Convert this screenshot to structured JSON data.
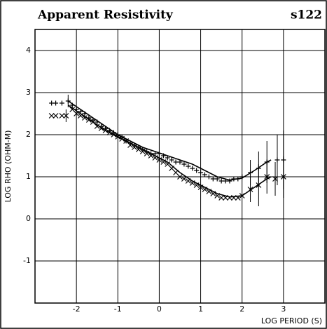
{
  "chart_data": {
    "type": "scatter-line",
    "title": "Apparent Resistivity",
    "subtitle": "s122",
    "x_label": "LOG PERIOD (S)",
    "y_label": "LOG RHO (OHM-M)",
    "xlim": [
      -3,
      4
    ],
    "ylim": [
      -2,
      4.5
    ],
    "xticks": [
      -2,
      -1,
      0,
      1,
      2,
      3
    ],
    "yticks": [
      -1,
      0,
      1,
      2,
      3,
      4
    ],
    "grid": true,
    "series": [
      {
        "marker": "+",
        "color": "#000000",
        "x": [
          -2.6,
          -2.5,
          -2.35,
          -2.2,
          -2.1,
          -2.0,
          -1.9,
          -1.8,
          -1.7,
          -1.6,
          -1.5,
          -1.4,
          -1.3,
          -1.2,
          -1.1,
          -1.0,
          -0.9,
          -0.8,
          -0.7,
          -0.6,
          -0.5,
          -0.4,
          -0.3,
          -0.2,
          -0.1,
          0,
          0.1,
          0.2,
          0.3,
          0.4,
          0.5,
          0.6,
          0.7,
          0.8,
          0.9,
          1.0,
          1.1,
          1.2,
          1.3,
          1.4,
          1.5,
          1.6,
          1.7,
          1.8,
          1.9,
          2.0,
          2.2,
          2.4,
          2.6,
          2.85,
          3.0
        ],
        "values": [
          2.75,
          2.75,
          2.75,
          2.8,
          2.7,
          2.6,
          2.55,
          2.5,
          2.4,
          2.35,
          2.3,
          2.2,
          2.15,
          2.1,
          2.05,
          2.0,
          1.95,
          1.85,
          1.8,
          1.75,
          1.7,
          1.65,
          1.6,
          1.55,
          1.55,
          1.55,
          1.5,
          1.45,
          1.4,
          1.35,
          1.35,
          1.3,
          1.25,
          1.2,
          1.15,
          1.1,
          1.05,
          1.0,
          0.95,
          0.95,
          0.9,
          0.9,
          0.9,
          0.95,
          0.95,
          1.0,
          1.1,
          1.2,
          1.35,
          1.4,
          1.4
        ],
        "errors": [
          null,
          null,
          null,
          0.15,
          null,
          null,
          null,
          null,
          null,
          null,
          null,
          null,
          null,
          null,
          null,
          null,
          null,
          null,
          null,
          null,
          null,
          null,
          null,
          null,
          null,
          null,
          null,
          null,
          null,
          null,
          null,
          null,
          null,
          null,
          null,
          null,
          null,
          null,
          null,
          null,
          null,
          null,
          null,
          null,
          null,
          null,
          0.3,
          0.4,
          0.5,
          0.6,
          0.7
        ]
      },
      {
        "marker": "x",
        "color": "#000000",
        "x": [
          -2.6,
          -2.5,
          -2.35,
          -2.25,
          -2.1,
          -2.0,
          -1.9,
          -1.8,
          -1.7,
          -1.6,
          -1.5,
          -1.4,
          -1.3,
          -1.2,
          -1.1,
          -1.0,
          -0.9,
          -0.8,
          -0.7,
          -0.6,
          -0.5,
          -0.4,
          -0.3,
          -0.2,
          -0.1,
          0,
          0.1,
          0.2,
          0.3,
          0.4,
          0.5,
          0.6,
          0.7,
          0.8,
          0.9,
          1.0,
          1.1,
          1.2,
          1.3,
          1.4,
          1.5,
          1.6,
          1.7,
          1.8,
          1.9,
          2.0,
          2.2,
          2.4,
          2.6,
          2.8,
          3.0
        ],
        "values": [
          2.45,
          2.45,
          2.45,
          2.45,
          2.6,
          2.5,
          2.45,
          2.4,
          2.35,
          2.3,
          2.2,
          2.15,
          2.1,
          2.05,
          2.0,
          1.95,
          1.9,
          1.85,
          1.75,
          1.7,
          1.65,
          1.6,
          1.55,
          1.5,
          1.45,
          1.4,
          1.35,
          1.3,
          1.2,
          1.1,
          1.0,
          0.95,
          0.9,
          0.85,
          0.8,
          0.75,
          0.7,
          0.65,
          0.6,
          0.55,
          0.5,
          0.5,
          0.5,
          0.5,
          0.5,
          0.55,
          0.7,
          0.8,
          1.0,
          0.95,
          1.0
        ],
        "errors": [
          null,
          null,
          null,
          0.15,
          null,
          null,
          null,
          null,
          null,
          null,
          null,
          null,
          null,
          null,
          null,
          null,
          null,
          null,
          null,
          null,
          null,
          null,
          null,
          null,
          null,
          null,
          null,
          null,
          null,
          null,
          null,
          null,
          null,
          null,
          null,
          null,
          null,
          null,
          null,
          null,
          null,
          null,
          null,
          null,
          null,
          null,
          0.3,
          0.5,
          0.4,
          0.4,
          0.5
        ]
      },
      {
        "line": true,
        "color": "#000000",
        "x": [
          -2.2,
          -1.9,
          -1.6,
          -1.3,
          -1.0,
          -0.7,
          -0.4,
          -0.1,
          0.2,
          0.5,
          0.8,
          1.1,
          1.4,
          1.7,
          2.0,
          2.3,
          2.6,
          2.7
        ],
        "values": [
          2.8,
          2.6,
          2.4,
          2.2,
          2.0,
          1.85,
          1.7,
          1.6,
          1.5,
          1.4,
          1.3,
          1.15,
          1.0,
          0.92,
          0.97,
          1.15,
          1.35,
          1.4
        ]
      },
      {
        "line": true,
        "color": "#000000",
        "x": [
          -2.2,
          -1.9,
          -1.6,
          -1.3,
          -1.0,
          -0.7,
          -0.4,
          -0.1,
          0.2,
          0.5,
          0.8,
          1.1,
          1.4,
          1.7,
          2.0,
          2.3,
          2.6,
          2.7
        ],
        "values": [
          2.7,
          2.5,
          2.3,
          2.1,
          1.95,
          1.8,
          1.65,
          1.5,
          1.35,
          1.1,
          0.9,
          0.75,
          0.6,
          0.52,
          0.55,
          0.75,
          0.95,
          1.0
        ]
      }
    ]
  }
}
